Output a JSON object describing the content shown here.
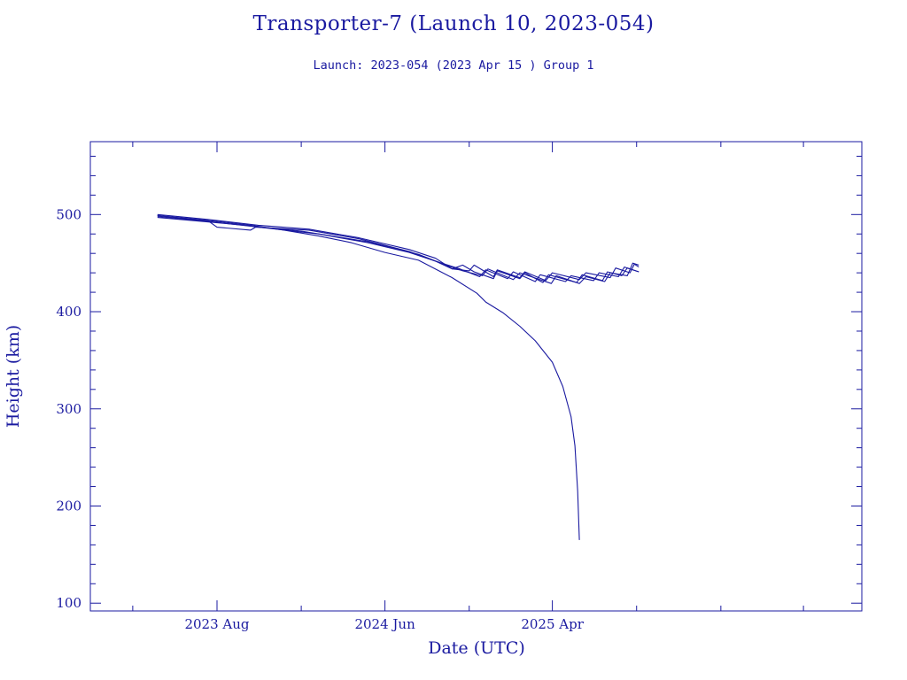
{
  "title": "Transporter-7 (Launch 10, 2023-054)",
  "subtitle": "Launch: 2023-054  (2023 Apr 15 )  Group 1",
  "chart_data": {
    "type": "line",
    "xlabel": "Date (UTC)",
    "ylabel": "Height (km)",
    "x_tick_labels": [
      {
        "date": "2023-08-01",
        "label": "2023 Aug"
      },
      {
        "date": "2024-06-01",
        "label": "2024 Jun"
      },
      {
        "date": "2025-04-01",
        "label": "2025 Apr"
      }
    ],
    "xlim": [
      "2022-12-14",
      "2026-10-15"
    ],
    "y_tick_labels": [
      100,
      200,
      300,
      400,
      500
    ],
    "ylim": [
      92,
      575
    ],
    "grid": false,
    "colors": {
      "axis": "#1a1aa0",
      "line": "#1a1aa0"
    },
    "series": [
      {
        "points": [
          [
            "2023-04-15",
            499
          ],
          [
            "2023-06-01",
            496
          ],
          [
            "2023-08-01",
            493
          ],
          [
            "2023-10-01",
            489
          ],
          [
            "2023-12-01",
            484
          ],
          [
            "2024-02-01",
            478
          ],
          [
            "2024-04-01",
            471
          ],
          [
            "2024-06-01",
            461
          ],
          [
            "2024-08-01",
            453
          ],
          [
            "2024-10-01",
            435
          ],
          [
            "2024-11-15",
            419
          ],
          [
            "2024-12-01",
            410
          ],
          [
            "2025-01-01",
            399
          ],
          [
            "2025-02-01",
            385
          ],
          [
            "2025-03-01",
            370
          ],
          [
            "2025-04-01",
            348
          ],
          [
            "2025-04-20",
            323
          ],
          [
            "2025-05-05",
            292
          ],
          [
            "2025-05-12",
            262
          ],
          [
            "2025-05-17",
            215
          ],
          [
            "2025-05-20",
            165
          ]
        ]
      },
      {
        "points": [
          [
            "2023-04-15",
            500
          ],
          [
            "2023-07-15",
            495
          ],
          [
            "2023-10-15",
            489
          ],
          [
            "2024-01-15",
            485
          ],
          [
            "2024-04-15",
            476
          ],
          [
            "2024-07-15",
            464
          ],
          [
            "2024-09-01",
            455
          ],
          [
            "2024-10-01",
            444
          ],
          [
            "2024-10-20",
            448
          ],
          [
            "2024-11-10",
            441
          ],
          [
            "2024-12-15",
            434
          ],
          [
            "2024-12-22",
            442
          ],
          [
            "2025-02-01",
            434
          ],
          [
            "2025-02-10",
            440
          ],
          [
            "2025-03-15",
            430
          ],
          [
            "2025-03-25",
            438
          ],
          [
            "2025-05-15",
            430
          ],
          [
            "2025-05-25",
            438
          ],
          [
            "2025-07-01",
            432
          ],
          [
            "2025-07-10",
            441
          ],
          [
            "2025-08-05",
            437
          ],
          [
            "2025-08-15",
            445
          ],
          [
            "2025-09-05",
            441
          ]
        ]
      },
      {
        "points": [
          [
            "2023-04-15",
            499
          ],
          [
            "2023-07-15",
            494
          ],
          [
            "2023-08-01",
            487
          ],
          [
            "2023-10-01",
            484
          ],
          [
            "2023-10-10",
            487
          ],
          [
            "2024-01-15",
            484
          ],
          [
            "2024-04-15",
            475
          ],
          [
            "2024-07-15",
            462
          ],
          [
            "2024-09-01",
            452
          ],
          [
            "2024-10-01",
            444
          ],
          [
            "2024-11-01",
            442
          ],
          [
            "2024-11-10",
            448
          ],
          [
            "2024-12-15",
            436
          ],
          [
            "2024-12-22",
            443
          ],
          [
            "2025-02-01",
            435
          ],
          [
            "2025-02-10",
            441
          ],
          [
            "2025-03-20",
            432
          ],
          [
            "2025-04-01",
            440
          ],
          [
            "2025-05-20",
            433
          ],
          [
            "2025-06-01",
            440
          ],
          [
            "2025-07-15",
            435
          ],
          [
            "2025-07-25",
            445
          ],
          [
            "2025-08-20",
            440
          ],
          [
            "2025-08-28",
            449
          ],
          [
            "2025-09-05",
            446
          ]
        ]
      },
      {
        "points": [
          [
            "2023-04-15",
            498
          ],
          [
            "2023-08-01",
            492
          ],
          [
            "2023-11-01",
            486
          ],
          [
            "2024-02-01",
            480
          ],
          [
            "2024-05-01",
            471
          ],
          [
            "2024-07-15",
            461
          ],
          [
            "2024-09-01",
            452
          ],
          [
            "2024-10-15",
            444
          ],
          [
            "2024-11-20",
            436
          ],
          [
            "2024-12-01",
            443
          ],
          [
            "2025-01-10",
            434
          ],
          [
            "2025-01-20",
            441
          ],
          [
            "2025-03-01",
            431
          ],
          [
            "2025-03-10",
            438
          ],
          [
            "2025-04-25",
            431
          ],
          [
            "2025-05-05",
            437
          ],
          [
            "2025-06-15",
            432
          ],
          [
            "2025-06-25",
            440
          ],
          [
            "2025-07-30",
            436
          ],
          [
            "2025-08-10",
            446
          ],
          [
            "2025-09-05",
            441
          ]
        ]
      },
      {
        "points": [
          [
            "2023-04-15",
            497
          ],
          [
            "2023-09-01",
            490
          ],
          [
            "2024-01-01",
            483
          ],
          [
            "2024-05-01",
            472
          ],
          [
            "2024-08-01",
            459
          ],
          [
            "2024-09-20",
            448
          ],
          [
            "2024-10-20",
            442
          ],
          [
            "2024-11-25",
            437
          ],
          [
            "2024-12-05",
            444
          ],
          [
            "2025-01-20",
            433
          ],
          [
            "2025-02-01",
            440
          ],
          [
            "2025-03-30",
            429
          ],
          [
            "2025-04-08",
            437
          ],
          [
            "2025-05-20",
            429
          ],
          [
            "2025-06-01",
            436
          ],
          [
            "2025-07-05",
            431
          ],
          [
            "2025-07-15",
            440
          ],
          [
            "2025-08-15",
            437
          ],
          [
            "2025-08-25",
            450
          ],
          [
            "2025-09-05",
            448
          ]
        ]
      }
    ]
  }
}
